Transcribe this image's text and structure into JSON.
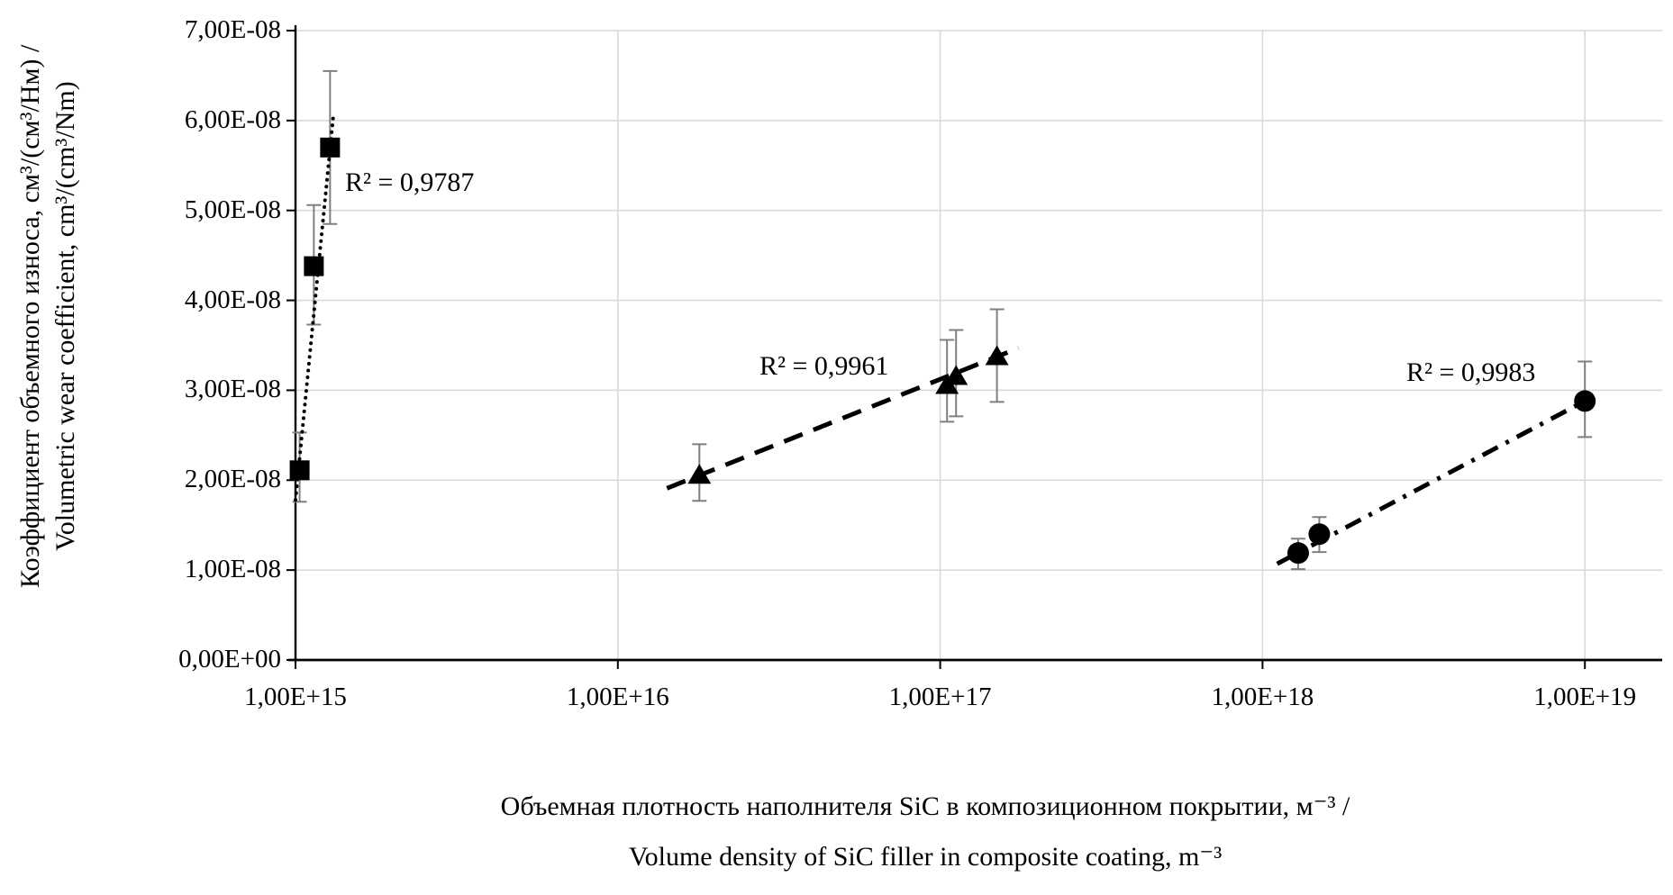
{
  "axes": {
    "y_title_line1": "Коэффициент объемного износа, см³/(см³/Нм) /",
    "y_title_line2": "Volumetric wear coefficient, cm³/(cm³/Nm)",
    "x_title_line1": "Объемная плотность наполнителя SiC в композиционном покрытии, м⁻³ /",
    "x_title_line2": "Volume density of SiC filler in composite coating, m⁻³"
  },
  "chart_data": {
    "type": "scatter",
    "x_scale": "log",
    "x_ticks": [
      "1,00E+15",
      "1,00E+16",
      "1,00E+17",
      "1,00E+18",
      "1,00E+19"
    ],
    "x_tick_values": [
      1000000000000000.0,
      1e+16,
      1e+17,
      1e+18,
      1e+19
    ],
    "y_ticks": [
      "0,00E+00",
      "1,00E-08",
      "2,00E-08",
      "3,00E-08",
      "4,00E-08",
      "5,00E-08",
      "6,00E-08",
      "7,00E-08"
    ],
    "y_tick_values": [
      0,
      1e-08,
      2e-08,
      3e-08,
      4e-08,
      5e-08,
      6e-08,
      7e-08
    ],
    "xlim": [
      1000000000000000.0,
      1.75e+19
    ],
    "ylim": [
      0,
      7e-08
    ],
    "grid": true,
    "grid_color": "#d9d9d9",
    "marker_color": "#000000",
    "error_bar_color": "#7f7f7f",
    "series": [
      {
        "name": "squares",
        "marker": "square",
        "trend_style": "dotted",
        "r2_text": "R² = 0,9787",
        "points": [
          {
            "x": 1030000000000000.0,
            "y": 2.11e-08,
            "err_lo": 1.76e-08,
            "err_hi": 2.53e-08
          },
          {
            "x": 1140000000000000.0,
            "y": 4.38e-08,
            "err_lo": 3.73e-08,
            "err_hi": 5.06e-08
          },
          {
            "x": 1280000000000000.0,
            "y": 5.7e-08,
            "err_lo": 4.85e-08,
            "err_hi": 6.55e-08
          }
        ],
        "trend": {
          "x1": 1000000000000000.0,
          "y1": 1.78e-08,
          "x2": 1310000000000000.0,
          "y2": 6.05e-08
        }
      },
      {
        "name": "triangles",
        "marker": "triangle",
        "trend_style": "dashed",
        "r2_text": "R² = 0,9961",
        "points": [
          {
            "x": 1.79e+16,
            "y": 2.06e-08,
            "err_lo": 1.77e-08,
            "err_hi": 2.4e-08
          },
          {
            "x": 1.05e+17,
            "y": 3.06e-08,
            "err_lo": 2.65e-08,
            "err_hi": 3.56e-08
          },
          {
            "x": 1.12e+17,
            "y": 3.16e-08,
            "err_lo": 2.71e-08,
            "err_hi": 3.67e-08
          },
          {
            "x": 1.5e+17,
            "y": 3.38e-08,
            "err_lo": 2.87e-08,
            "err_hi": 3.9e-08
          }
        ],
        "trend": {
          "x1": 1.42e+16,
          "y1": 1.91e-08,
          "x2": 1.75e+17,
          "y2": 3.47e-08
        }
      },
      {
        "name": "circles",
        "marker": "circle",
        "trend_style": "dashdot",
        "r2_text": "R² = 0,9983",
        "points": [
          {
            "x": 1.29e+18,
            "y": 1.19e-08,
            "err_lo": 1.01e-08,
            "err_hi": 1.35e-08
          },
          {
            "x": 1.5e+18,
            "y": 1.4e-08,
            "err_lo": 1.2e-08,
            "err_hi": 1.59e-08
          },
          {
            "x": 1e+19,
            "y": 2.88e-08,
            "err_lo": 2.48e-08,
            "err_hi": 3.32e-08
          }
        ],
        "trend": {
          "x1": 1.11e+18,
          "y1": 1.07e-08,
          "x2": 1e+19,
          "y2": 2.88e-08
        }
      }
    ]
  }
}
